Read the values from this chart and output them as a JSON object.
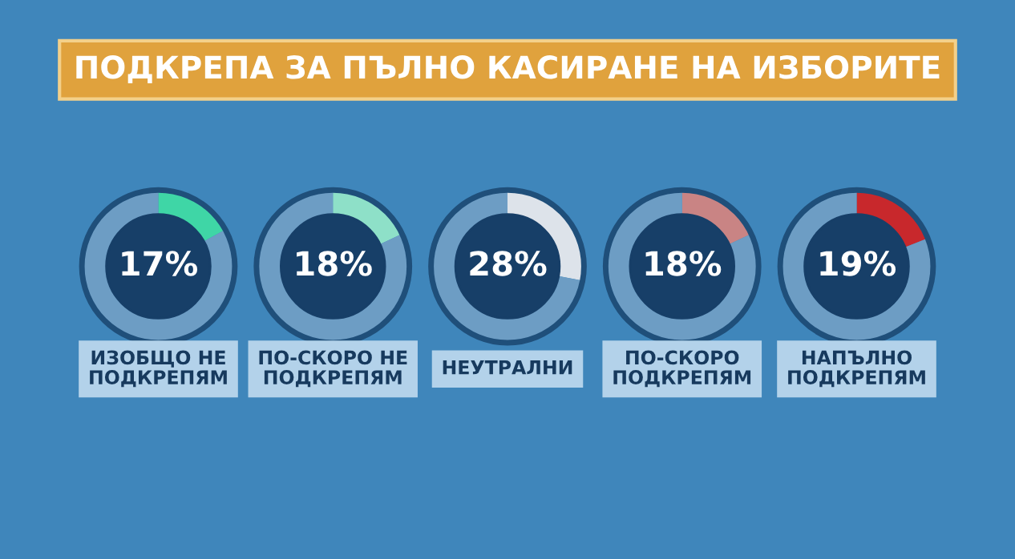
{
  "chart_data": [
    {
      "type": "donut",
      "title": "ПОДКРЕПА ЗА ПЪЛНО КАСИРАНЕ НА ИЗБОРИТЕ",
      "xlabel": "ИЗОБЩО НЕ\nПОДКРЕПЯМ",
      "categories": [
        null,
        null
      ],
      "values": [
        17,
        83
      ],
      "colors": [
        "#3fd6a6",
        "#6d9dc4"
      ],
      "value_labels": [
        "17%",
        null
      ]
    },
    {
      "type": "donut",
      "xlabel": "ПО-СКОРО НЕ\nПОДКРЕПЯМ",
      "categories": [
        null,
        null
      ],
      "values": [
        18,
        82
      ],
      "colors": [
        "#8ee0c8",
        "#6d9dc4"
      ],
      "value_labels": [
        "18%",
        null
      ]
    },
    {
      "type": "donut",
      "xlabel": "НЕУТРАЛНИ",
      "categories": [
        null,
        null
      ],
      "values": [
        28,
        72
      ],
      "colors": [
        "#dde3ea",
        "#6d9dc4"
      ],
      "value_labels": [
        "28%",
        null
      ]
    },
    {
      "type": "donut",
      "xlabel": "ПО-СКОРО\nПОДКРЕПЯМ",
      "categories": [
        null,
        null
      ],
      "values": [
        18,
        82
      ],
      "colors": [
        "#c98484",
        "#6d9dc4"
      ],
      "value_labels": [
        "18%",
        null
      ]
    },
    {
      "type": "donut",
      "xlabel": "НАПЪЛНО\nПОДКРЕПЯМ",
      "categories": [
        null,
        null
      ],
      "values": [
        19,
        81
      ],
      "colors": [
        "#c8282c",
        "#6d9dc4"
      ],
      "value_labels": [
        "19%",
        null
      ]
    }
  ]
}
